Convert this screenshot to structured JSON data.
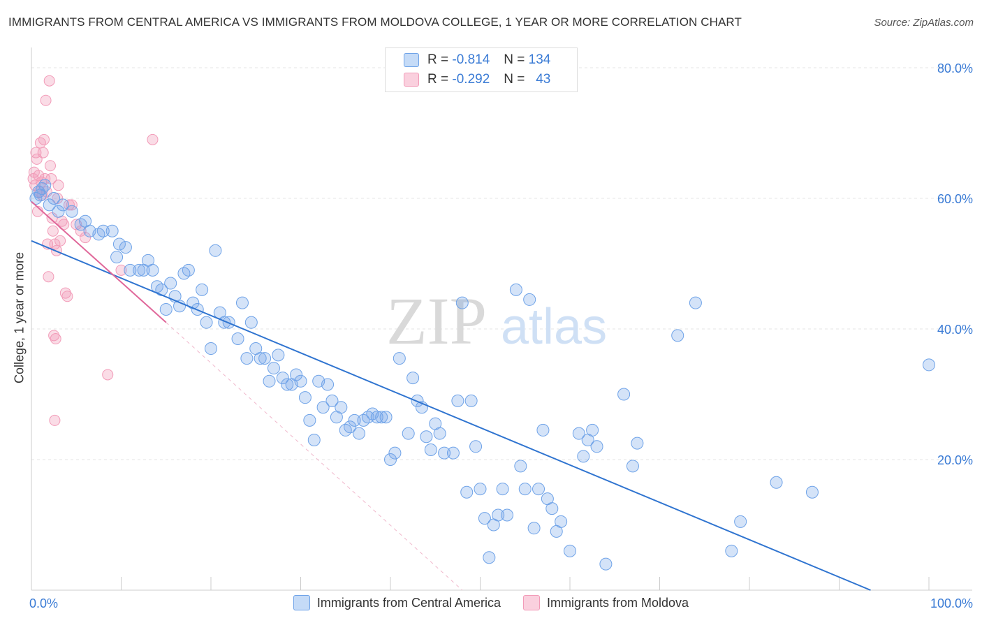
{
  "title": "IMMIGRANTS FROM CENTRAL AMERICA VS IMMIGRANTS FROM MOLDOVA COLLEGE, 1 YEAR OR MORE CORRELATION CHART",
  "source": "Source: ZipAtlas.com",
  "watermark": {
    "zip": "ZIP",
    "atlas": "atlas"
  },
  "legend": {
    "r_label": "R =",
    "n_label": "N =",
    "central_america": {
      "r": "-0.814",
      "n": "134"
    },
    "moldova": {
      "r": "-0.292",
      "n": "43"
    }
  },
  "colors": {
    "blue": "#6fa3e8",
    "blue_line": "#2f74d0",
    "pink": "#f29bb8",
    "pink_line": "#e0689a",
    "tick": "#3a7bd5"
  },
  "chart_data": {
    "type": "scatter",
    "title": "IMMIGRANTS FROM CENTRAL AMERICA VS IMMIGRANTS FROM MOLDOVA COLLEGE, 1 YEAR OR MORE CORRELATION CHART",
    "xlabel": "",
    "ylabel": "College, 1 year or more",
    "xlim": [
      0,
      100
    ],
    "ylim": [
      0,
      80
    ],
    "x_tick_labels": [
      "0.0%",
      "100.0%"
    ],
    "y_ticks": [
      20,
      40,
      60,
      80
    ],
    "y_tick_labels": [
      "20.0%",
      "40.0%",
      "60.0%",
      "80.0%"
    ],
    "grid": true,
    "legend_position": "top-center",
    "series": [
      {
        "name": "Immigrants from Central America",
        "color": "#6fa3e8",
        "trend": {
          "x": [
            0,
            93.5
          ],
          "y": [
            53.5,
            0
          ]
        },
        "points": [
          [
            0.5,
            60
          ],
          [
            0.8,
            61
          ],
          [
            1,
            60.5
          ],
          [
            1.2,
            61.5
          ],
          [
            1.5,
            62
          ],
          [
            2,
            59
          ],
          [
            2.5,
            60
          ],
          [
            3,
            58
          ],
          [
            3.5,
            59
          ],
          [
            4.5,
            58
          ],
          [
            5.5,
            56
          ],
          [
            6,
            56.5
          ],
          [
            6.5,
            55
          ],
          [
            7.5,
            54.5
          ],
          [
            8,
            55
          ],
          [
            9,
            55
          ],
          [
            9.5,
            51
          ],
          [
            9.8,
            53
          ],
          [
            10.5,
            52.5
          ],
          [
            11,
            49
          ],
          [
            12,
            49
          ],
          [
            12.5,
            49
          ],
          [
            13,
            50.5
          ],
          [
            13.5,
            49
          ],
          [
            14,
            46.5
          ],
          [
            14.5,
            46
          ],
          [
            15,
            43
          ],
          [
            15.5,
            47
          ],
          [
            16,
            45
          ],
          [
            16.5,
            43.5
          ],
          [
            17,
            48.5
          ],
          [
            17.5,
            49
          ],
          [
            18,
            44
          ],
          [
            18.5,
            43
          ],
          [
            19,
            46
          ],
          [
            19.5,
            41
          ],
          [
            20,
            37
          ],
          [
            20.5,
            52
          ],
          [
            21,
            42.5
          ],
          [
            21.5,
            41
          ],
          [
            22,
            41
          ],
          [
            23,
            38.5
          ],
          [
            23.5,
            44
          ],
          [
            24,
            35.5
          ],
          [
            24.5,
            41
          ],
          [
            25,
            37
          ],
          [
            25.5,
            35.5
          ],
          [
            26,
            35.5
          ],
          [
            26.5,
            32
          ],
          [
            27,
            34
          ],
          [
            27.5,
            36
          ],
          [
            28,
            32.5
          ],
          [
            28.5,
            31.5
          ],
          [
            29,
            31.5
          ],
          [
            29.5,
            33
          ],
          [
            30,
            32
          ],
          [
            30.5,
            29.5
          ],
          [
            31,
            26
          ],
          [
            31.5,
            23
          ],
          [
            32,
            32
          ],
          [
            32.5,
            28
          ],
          [
            33,
            31.5
          ],
          [
            33.5,
            29
          ],
          [
            34,
            26.5
          ],
          [
            34.5,
            28
          ],
          [
            35,
            24.5
          ],
          [
            35.5,
            25
          ],
          [
            36,
            26
          ],
          [
            36.5,
            24
          ],
          [
            37,
            26
          ],
          [
            37.5,
            26.5
          ],
          [
            38,
            27
          ],
          [
            38.5,
            26.5
          ],
          [
            39,
            26.5
          ],
          [
            39.5,
            26.5
          ],
          [
            40,
            20
          ],
          [
            40.5,
            21
          ],
          [
            41,
            35.5
          ],
          [
            42,
            24
          ],
          [
            42.5,
            32.5
          ],
          [
            43,
            29
          ],
          [
            43.5,
            28
          ],
          [
            44,
            23.5
          ],
          [
            44.5,
            21.5
          ],
          [
            45,
            25.5
          ],
          [
            45.5,
            24
          ],
          [
            46,
            21
          ],
          [
            47,
            21
          ],
          [
            47.5,
            29
          ],
          [
            48,
            44
          ],
          [
            48.5,
            15
          ],
          [
            49,
            29
          ],
          [
            49.5,
            22
          ],
          [
            50,
            15.5
          ],
          [
            50.5,
            11
          ],
          [
            51,
            5
          ],
          [
            51.5,
            10
          ],
          [
            52,
            11.5
          ],
          [
            52.5,
            15.5
          ],
          [
            53,
            11.5
          ],
          [
            54,
            46
          ],
          [
            54.5,
            19
          ],
          [
            55,
            15.5
          ],
          [
            55.5,
            44.5
          ],
          [
            56,
            9.5
          ],
          [
            56.5,
            15.5
          ],
          [
            57,
            24.5
          ],
          [
            57.5,
            14
          ],
          [
            58,
            12.5
          ],
          [
            58.5,
            9
          ],
          [
            59,
            10.5
          ],
          [
            60,
            6
          ],
          [
            61,
            24
          ],
          [
            61.5,
            20.5
          ],
          [
            62,
            23
          ],
          [
            62.5,
            24.5
          ],
          [
            63,
            22
          ],
          [
            64,
            4
          ],
          [
            66,
            30
          ],
          [
            67,
            19
          ],
          [
            67.5,
            22.5
          ],
          [
            72,
            39
          ],
          [
            74,
            44
          ],
          [
            78,
            6
          ],
          [
            79,
            10.5
          ],
          [
            83,
            16.5
          ],
          [
            87,
            15
          ],
          [
            100,
            34.5
          ]
        ]
      },
      {
        "name": "Immigrants from Moldova",
        "color": "#f29bb8",
        "trend": {
          "x": [
            0,
            15
          ],
          "y": [
            59.5,
            41
          ]
        },
        "trend_dashed": {
          "x": [
            15,
            48
          ],
          "y": [
            41,
            0
          ]
        },
        "points": [
          [
            0.2,
            63
          ],
          [
            0.3,
            64
          ],
          [
            0.4,
            62
          ],
          [
            0.5,
            67
          ],
          [
            0.6,
            66
          ],
          [
            0.7,
            58
          ],
          [
            0.8,
            63.5
          ],
          [
            0.9,
            61
          ],
          [
            1,
            68.5
          ],
          [
            1.1,
            62.5
          ],
          [
            1.2,
            60.5
          ],
          [
            1.3,
            67
          ],
          [
            1.4,
            69
          ],
          [
            1.5,
            63
          ],
          [
            1.6,
            75
          ],
          [
            1.7,
            61
          ],
          [
            1.8,
            53
          ],
          [
            1.9,
            48
          ],
          [
            2,
            78
          ],
          [
            2.1,
            65
          ],
          [
            2.2,
            63
          ],
          [
            2.3,
            57
          ],
          [
            2.4,
            55
          ],
          [
            2.5,
            39
          ],
          [
            2.6,
            53
          ],
          [
            2.7,
            38.5
          ],
          [
            2.8,
            52
          ],
          [
            2.9,
            60
          ],
          [
            3,
            62
          ],
          [
            3.2,
            53.5
          ],
          [
            3.4,
            56.5
          ],
          [
            3.6,
            56
          ],
          [
            3.8,
            45.5
          ],
          [
            4,
            45
          ],
          [
            4.2,
            59
          ],
          [
            4.5,
            59
          ],
          [
            5,
            56
          ],
          [
            5.5,
            55
          ],
          [
            6,
            54
          ],
          [
            8.5,
            33
          ],
          [
            10,
            49
          ],
          [
            13.5,
            69
          ],
          [
            2.6,
            26
          ]
        ]
      }
    ]
  }
}
